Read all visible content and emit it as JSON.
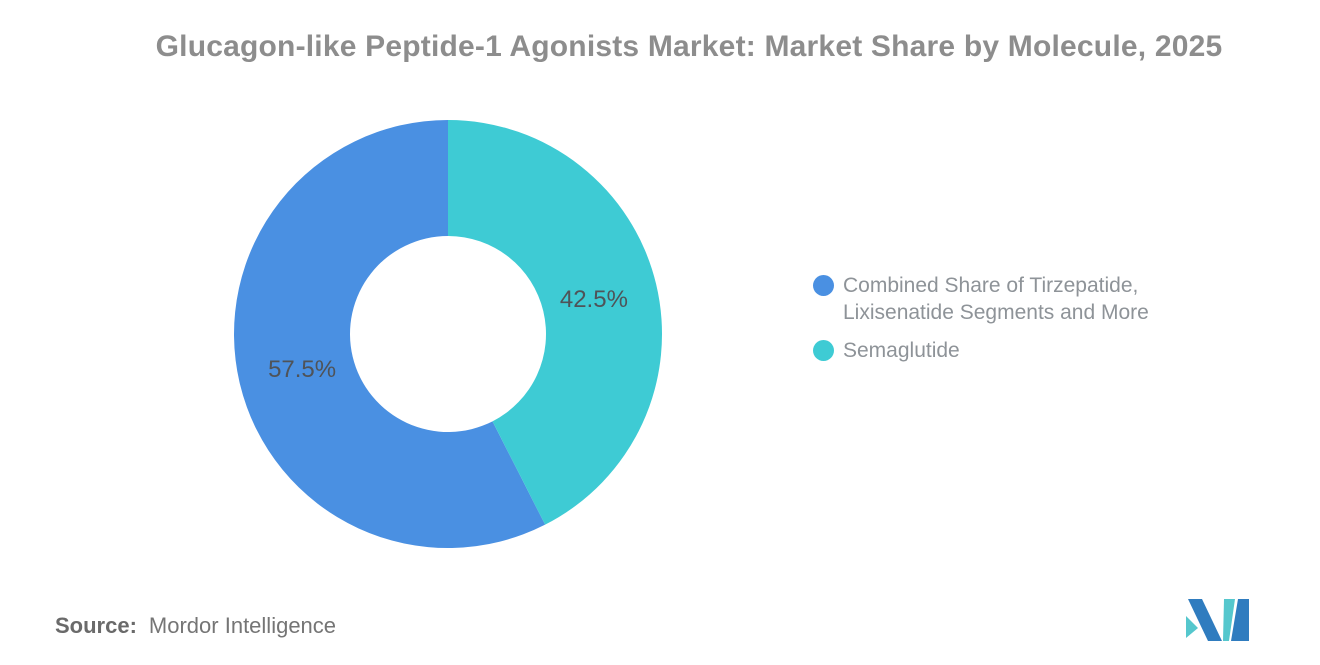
{
  "header": {
    "title": "Glucagon-like Peptide-1 Agonists Market: Market Share by Molecule, 2025"
  },
  "chart_data": {
    "type": "pie",
    "subtype": "donut",
    "title": "Glucagon-like Peptide-1 Agonists Market: Market Share by Molecule, 2025",
    "slices": [
      {
        "name": "Combined Share of Tirzepatide,\nLixisenatide Segments and More",
        "value": 57.5,
        "label": "57.5%",
        "color": "#4a90e2"
      },
      {
        "name": "Semaglutide",
        "value": 42.5,
        "label": "42.5%",
        "color": "#3ecbd4"
      }
    ],
    "rotation_deg_clockwise_from_top": 153,
    "legend_position": "right",
    "data_labels": "inside-percent",
    "label_color": "#4f5358",
    "hole_ratio": 0.46
  },
  "footer": {
    "source_label": "Source:",
    "source_value": "Mordor Intelligence",
    "logo": "mordor-intelligence-logo"
  },
  "colors": {
    "slice_blue": "#4a90e2",
    "slice_teal": "#3ecbd4",
    "title_gray": "#8d8d8d",
    "legend_gray": "#8e9398",
    "logo_blue": "#2f7cbf",
    "logo_teal": "#55c7cd"
  }
}
